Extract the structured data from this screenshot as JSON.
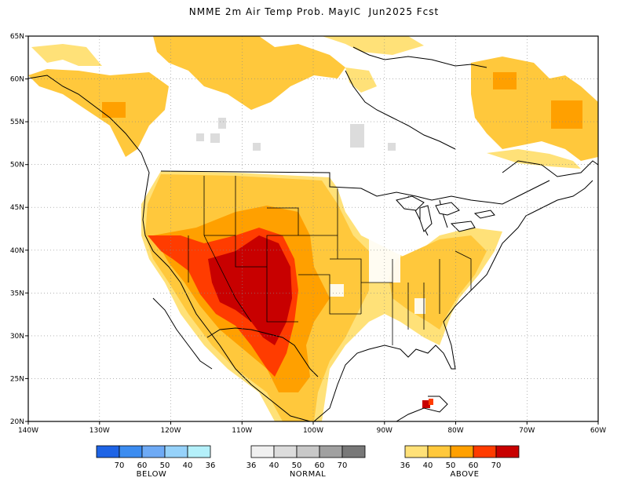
{
  "title": "NMME 2m Air Temp Prob. MayIC  Jun2025 Fcst",
  "map": {
    "lon_range": [
      -140,
      -60
    ],
    "lat_range": [
      20,
      65
    ],
    "lon_ticks": [
      "140W",
      "130W",
      "120W",
      "110W",
      "100W",
      "90W",
      "80W",
      "70W",
      "60W"
    ],
    "lat_ticks": [
      "65N",
      "60N",
      "55N",
      "50N",
      "45N",
      "40N",
      "35N",
      "30N",
      "25N",
      "20N"
    ],
    "grid": "dotted"
  },
  "legend": {
    "below": {
      "caption": "BELOW",
      "labels": [
        "70",
        "60",
        "50",
        "40",
        "36"
      ],
      "colors": [
        "#1e64e6",
        "#3c8cf0",
        "#6eaaf5",
        "#96d2fa",
        "#b4f0fa"
      ]
    },
    "normal": {
      "caption": "NORMAL",
      "labels": [
        "36",
        "40",
        "50",
        "60",
        "70"
      ],
      "colors": [
        "#f0f0f0",
        "#dcdcdc",
        "#c8c8c8",
        "#a0a0a0",
        "#787878"
      ]
    },
    "above": {
      "caption": "ABOVE",
      "labels": [
        "36",
        "40",
        "50",
        "60",
        "70"
      ],
      "colors": [
        "#ffe178",
        "#ffc83c",
        "#ffa000",
        "#ff3c00",
        "#c80000"
      ]
    }
  }
}
